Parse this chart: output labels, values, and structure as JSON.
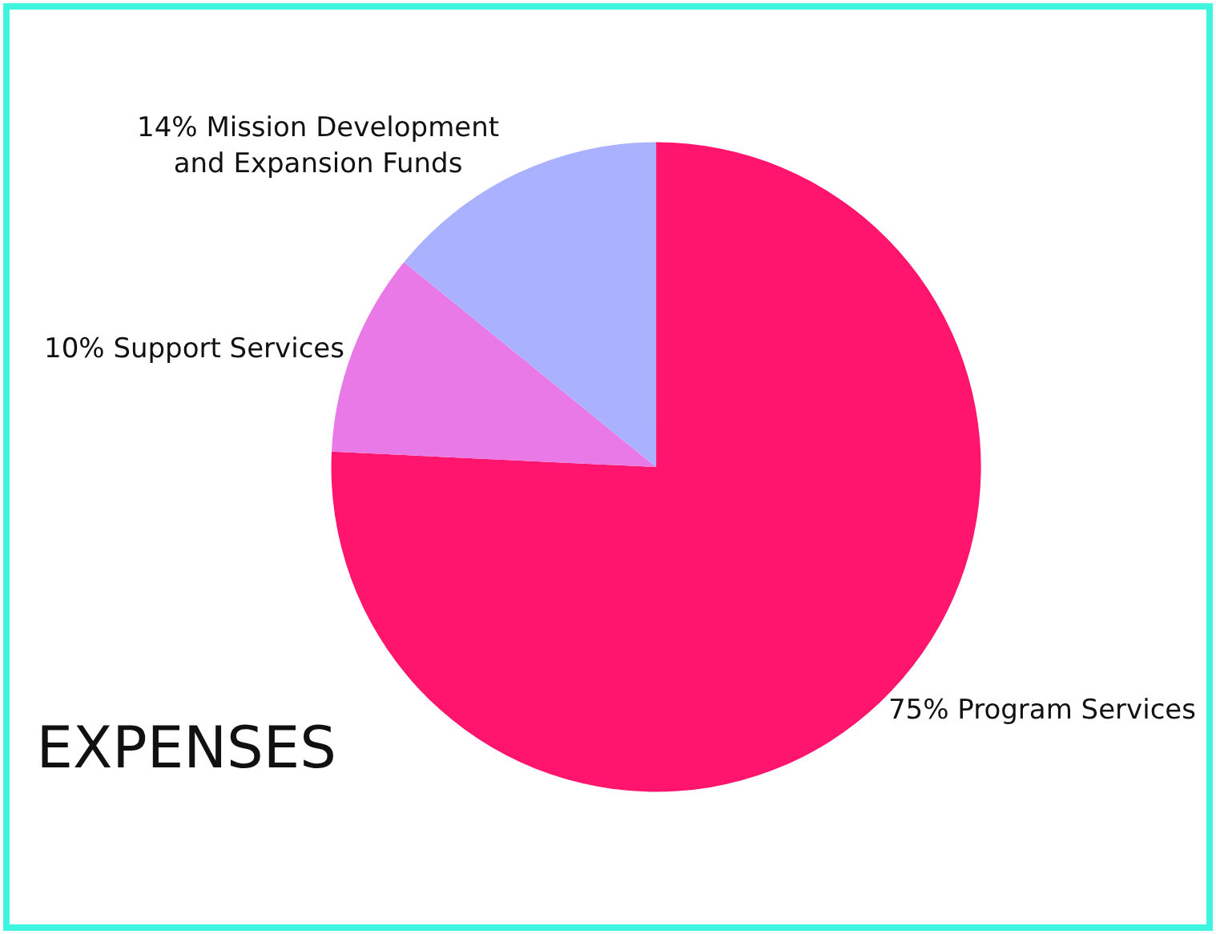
{
  "chart_data": {
    "type": "pie",
    "title": "EXPENSES",
    "categories": [
      "Program Services",
      "Support Services",
      "Mission Development and Expansion Funds"
    ],
    "values": [
      75,
      10,
      14
    ],
    "colors": [
      "#ff146e",
      "#e879e6",
      "#aab2ff"
    ],
    "value_labels": [
      "75%",
      "10%",
      "14%"
    ],
    "legend": false
  }
}
